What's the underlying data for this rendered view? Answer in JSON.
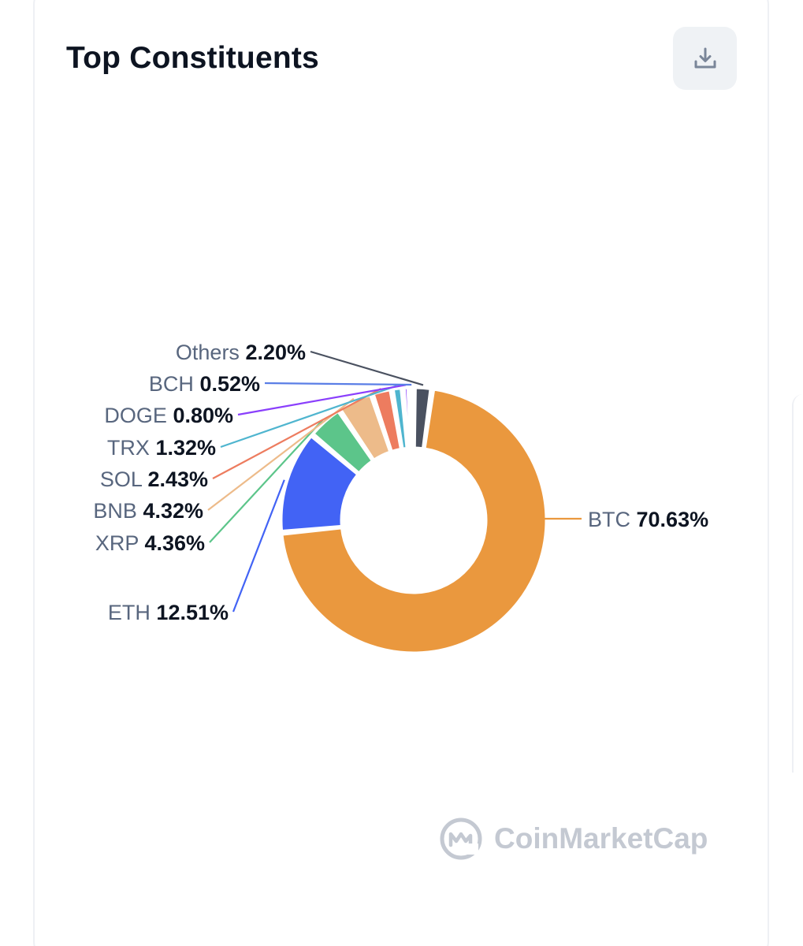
{
  "card": {
    "title": "Top Constituents"
  },
  "toolbar": {
    "download_icon": "download-icon"
  },
  "watermark": {
    "brand": "CoinMarketCap",
    "logo_icon": "coinmarketcap-logo"
  },
  "chart_data": {
    "type": "pie",
    "variant": "donut",
    "title": "Top Constituents",
    "units": "%",
    "slices": [
      {
        "name": "BTC",
        "value": 70.63,
        "label": "70.63%",
        "color": "#ea983e"
      },
      {
        "name": "ETH",
        "value": 12.51,
        "label": "12.51%",
        "color": "#4263f5"
      },
      {
        "name": "XRP",
        "value": 4.36,
        "label": "4.36%",
        "color": "#5cc58a"
      },
      {
        "name": "BNB",
        "value": 4.32,
        "label": "4.32%",
        "color": "#edbb8a"
      },
      {
        "name": "SOL",
        "value": 2.43,
        "label": "2.43%",
        "color": "#ed7c5f"
      },
      {
        "name": "TRX",
        "value": 1.32,
        "label": "1.32%",
        "color": "#4fb5cf"
      },
      {
        "name": "DOGE",
        "value": 0.8,
        "label": "0.80%",
        "color": "#8a3ffc"
      },
      {
        "name": "BCH",
        "value": 0.52,
        "label": "0.52%",
        "color": "#5a7ee6"
      },
      {
        "name": "Others",
        "value": 2.2,
        "label": "2.20%",
        "color": "#4a5160"
      }
    ],
    "legend": "none"
  }
}
